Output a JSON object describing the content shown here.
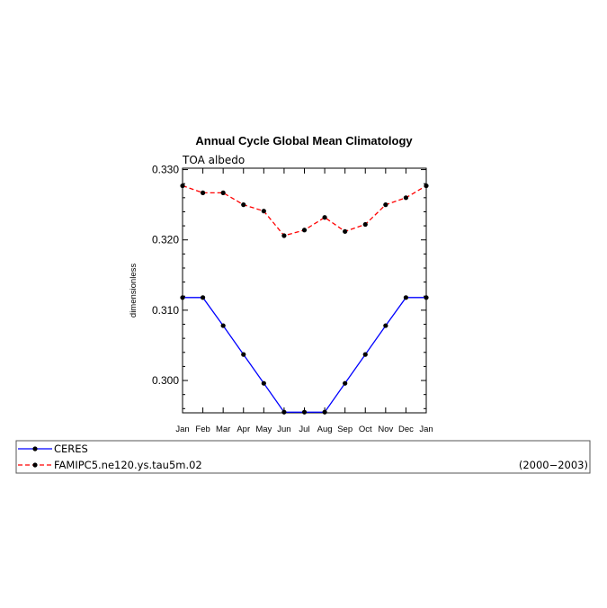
{
  "chart_data": {
    "type": "line",
    "title": "Annual Cycle Global Mean Climatology",
    "subtitle": "TOA albedo",
    "ylabel": "dimensionless",
    "xlabel": "",
    "categories": [
      "Jan",
      "Feb",
      "Mar",
      "Apr",
      "May",
      "Jun",
      "Jul",
      "Aug",
      "Sep",
      "Oct",
      "Nov",
      "Dec",
      "Jan"
    ],
    "ylim": [
      0.2954,
      0.3302
    ],
    "yticks": [
      0.3,
      0.31,
      0.32,
      0.33
    ],
    "ytick_labels": [
      "0.300",
      "0.310",
      "0.320",
      "0.330"
    ],
    "grid": false,
    "legend_placement": "bottom",
    "legend_period": "(2000−2003)",
    "series": [
      {
        "name": "CERES",
        "color": "#0000ff",
        "dash": "solid",
        "values": [
          0.3118,
          0.3118,
          0.3078,
          0.3037,
          0.2996,
          0.2955,
          0.2955,
          0.2955,
          0.2996,
          0.3037,
          0.3078,
          0.3118,
          0.3118
        ]
      },
      {
        "name": "FAMIPC5.ne120.ys.tau5m.02",
        "color": "#ff0000",
        "dash": "dashed",
        "values": [
          0.3277,
          0.3267,
          0.3267,
          0.325,
          0.3241,
          0.3206,
          0.3214,
          0.3232,
          0.3212,
          0.3222,
          0.325,
          0.326,
          0.3277
        ]
      }
    ]
  }
}
